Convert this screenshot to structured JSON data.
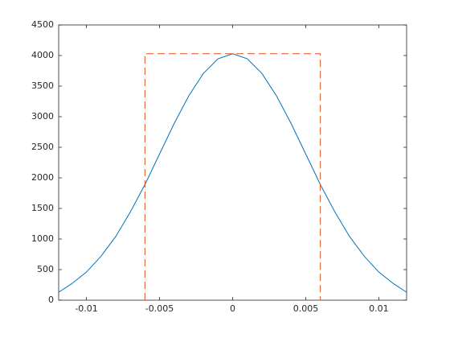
{
  "chart_data": {
    "type": "line",
    "xlim": [
      -0.0119,
      0.0119
    ],
    "xticks": [
      -0.01,
      -0.005,
      0,
      0.005,
      0.01
    ],
    "ylim": [
      0,
      4500
    ],
    "yticks": [
      0,
      500,
      1000,
      1500,
      2000,
      2500,
      3000,
      3500,
      4000,
      4500
    ],
    "grid": false,
    "series": [
      {
        "color": "#0072bd",
        "line_style": "solid",
        "x": [
          -0.0119,
          -0.011,
          -0.01,
          -0.009,
          -0.008,
          -0.007,
          -0.006,
          -0.005,
          -0.004,
          -0.003,
          -0.002,
          -0.001,
          0,
          0.001,
          0.002,
          0.003,
          0.004,
          0.005,
          0.006,
          0.007,
          0.008,
          0.009,
          0.01,
          0.011,
          0.0119
        ],
        "values": [
          130,
          270,
          460,
          720,
          1040,
          1440,
          1890,
          2390,
          2888,
          3341,
          3708,
          3947,
          4030,
          3947,
          3708,
          3341,
          2888,
          2390,
          1890,
          1440,
          1040,
          720,
          460,
          270,
          130
        ]
      },
      {
        "color": "#d95319",
        "line_style": "dashed",
        "x": [
          -0.006,
          -0.006,
          0.006,
          0.006
        ],
        "values": [
          0,
          4030,
          4030,
          0
        ]
      }
    ]
  }
}
